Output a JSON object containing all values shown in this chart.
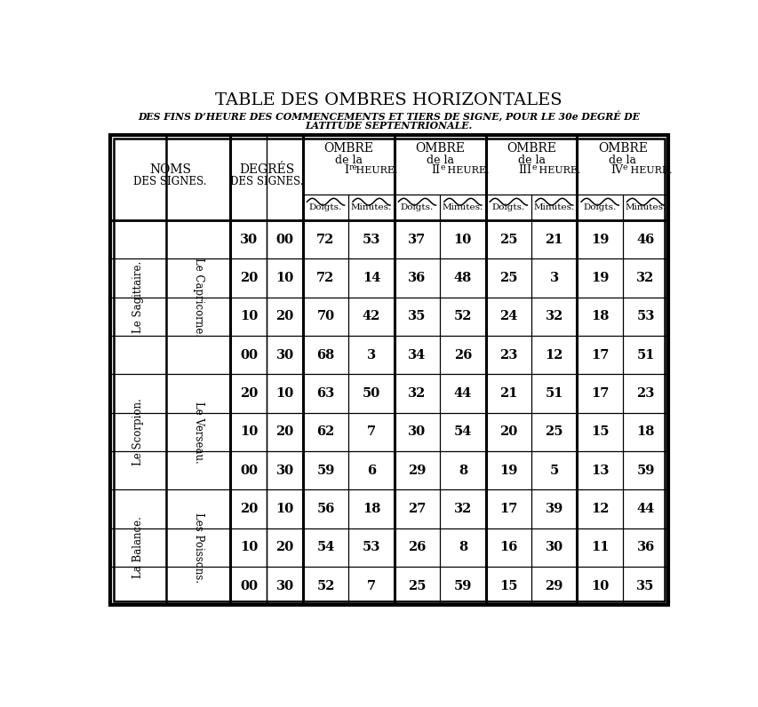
{
  "title": "TABLE DES OMBRES HORIZONTALES",
  "subtitle1": "DES FINS D’HEURE DES COMMENCEMENTS ET TIERS DE SIGNE, POUR LE 30e DEGRÉ DE",
  "subtitle2": "LATITUDE SEPTENTRIONALE.",
  "ombre_headers": [
    [
      "OMBRE",
      "de la",
      "I",
      "re",
      " HEURE."
    ],
    [
      "OMBRE",
      "de la",
      "II",
      "e",
      " HEURE."
    ],
    [
      "OMBRE",
      "de la",
      "III",
      "e",
      " HEURE."
    ],
    [
      "OMBRE",
      "de la",
      "IV",
      "e",
      " HEURE."
    ]
  ],
  "sub_headers": [
    "Doigts.",
    "Minutes.",
    "Doigts.",
    "Minutes.",
    "Doigts.",
    "Minutes.",
    "Doigts.",
    "Minutes."
  ],
  "row_groups": [
    {
      "nom_left": "Le Sagittaire.",
      "nom_right": "Le Capricorne.",
      "n_rows": 4,
      "rows": [
        [
          "30",
          "00",
          "72",
          "53",
          "37",
          "10",
          "25",
          "21",
          "19",
          "46"
        ],
        [
          "20",
          "10",
          "72",
          "14",
          "36",
          "48",
          "25",
          "3",
          "19",
          "32"
        ],
        [
          "10",
          "20",
          "70",
          "42",
          "35",
          "52",
          "24",
          "32",
          "18",
          "53"
        ],
        [
          "00",
          "30",
          "68",
          "3",
          "34",
          "26",
          "23",
          "12",
          "17",
          "51"
        ]
      ]
    },
    {
      "nom_left": "Le Scorpion.",
      "nom_right": "Le Verseau.",
      "n_rows": 3,
      "rows": [
        [
          "20",
          "10",
          "63",
          "50",
          "32",
          "44",
          "21",
          "51",
          "17",
          "23"
        ],
        [
          "10",
          "20",
          "62",
          "7",
          "30",
          "54",
          "20",
          "25",
          "15",
          "18"
        ],
        [
          "00",
          "30",
          "59",
          "6",
          "29",
          "8",
          "19",
          "5",
          "13",
          "59"
        ]
      ]
    },
    {
      "nom_left": "La Balance.",
      "nom_right": "Les Poissons.",
      "n_rows": 3,
      "rows": [
        [
          "20",
          "10",
          "56",
          "18",
          "27",
          "32",
          "17",
          "39",
          "12",
          "44"
        ],
        [
          "10",
          "20",
          "54",
          "53",
          "26",
          "8",
          "16",
          "30",
          "11",
          "36"
        ],
        [
          "00",
          "30",
          "52",
          "7",
          "25",
          "59",
          "15",
          "29",
          "10",
          "35"
        ]
      ]
    }
  ],
  "bg_color": "#ffffff",
  "text_color": "#000000"
}
